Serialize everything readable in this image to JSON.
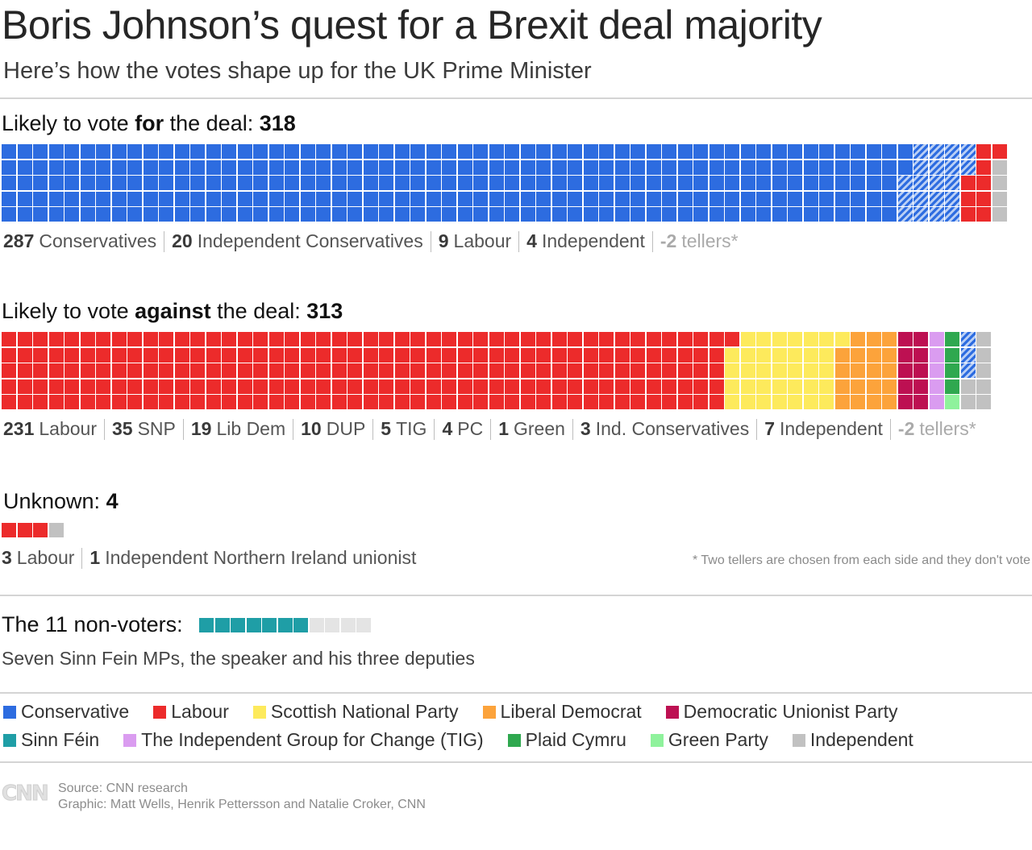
{
  "title": "Boris Johnson’s quest for a Brexit deal majority",
  "subtitle": "Here’s how the votes shape up for the UK Prime Minister",
  "colors": {
    "conservative": "#2d6ce0",
    "labour": "#ec2b2b",
    "snp": "#fdea5c",
    "libdem": "#fca33b",
    "dup": "#bd1052",
    "sinn_fein": "#1f9ea6",
    "tig": "#da9cf0",
    "plaid": "#2fa84f",
    "green": "#8ff29c",
    "independent": "#c1c1c1",
    "independent_conservative_hatch": "#2d6ce0",
    "empty": "#e4e4e4"
  },
  "chart_data": [
    {
      "type": "waffle",
      "heading_prefix": "Likely to vote",
      "heading_bold": "for",
      "heading_suffix": "the deal:",
      "total": "318",
      "rows": 5,
      "segments": [
        {
          "party": "Conservatives",
          "count": 287,
          "color_key": "conservative",
          "hatch": false
        },
        {
          "party": "Independent Conservatives",
          "count": 20,
          "color_key": "conservative",
          "hatch": true
        },
        {
          "party": "Labour",
          "count": 9,
          "color_key": "labour",
          "hatch": false
        },
        {
          "party": "Independent",
          "count": 4,
          "color_key": "independent",
          "hatch": false
        }
      ],
      "breakdown": [
        {
          "num": "287",
          "label": "Conservatives",
          "muted": false
        },
        {
          "num": "20",
          "label": "Independent Conservatives",
          "muted": false
        },
        {
          "num": "9",
          "label": "Labour",
          "muted": false
        },
        {
          "num": "4",
          "label": "Independent",
          "muted": false
        },
        {
          "num": "-2",
          "label": "tellers*",
          "muted": true
        }
      ]
    },
    {
      "type": "waffle",
      "heading_prefix": "Likely to vote",
      "heading_bold": "against",
      "heading_suffix": "the deal:",
      "total": "313",
      "rows": 5,
      "segments": [
        {
          "party": "Labour",
          "count": 231,
          "color_key": "labour",
          "hatch": false
        },
        {
          "party": "SNP",
          "count": 35,
          "color_key": "snp",
          "hatch": false
        },
        {
          "party": "Lib Dem",
          "count": 19,
          "color_key": "libdem",
          "hatch": false
        },
        {
          "party": "DUP",
          "count": 10,
          "color_key": "dup",
          "hatch": false
        },
        {
          "party": "TIG",
          "count": 5,
          "color_key": "tig",
          "hatch": false
        },
        {
          "party": "PC",
          "count": 4,
          "color_key": "plaid",
          "hatch": false
        },
        {
          "party": "Green",
          "count": 1,
          "color_key": "green",
          "hatch": false
        },
        {
          "party": "Ind. Conservatives",
          "count": 3,
          "color_key": "conservative",
          "hatch": true
        },
        {
          "party": "Independent",
          "count": 7,
          "color_key": "independent",
          "hatch": false
        }
      ],
      "breakdown": [
        {
          "num": "231",
          "label": "Labour",
          "muted": false
        },
        {
          "num": "35",
          "label": "SNP",
          "muted": false
        },
        {
          "num": "19",
          "label": "Lib Dem",
          "muted": false
        },
        {
          "num": "10",
          "label": "DUP",
          "muted": false
        },
        {
          "num": "5",
          "label": "TIG",
          "muted": false
        },
        {
          "num": "4",
          "label": "PC",
          "muted": false
        },
        {
          "num": "1",
          "label": "Green",
          "muted": false
        },
        {
          "num": "3",
          "label": "Ind. Conservatives",
          "muted": false
        },
        {
          "num": "7",
          "label": "Independent",
          "muted": false
        },
        {
          "num": "-2",
          "label": "tellers*",
          "muted": true
        }
      ]
    },
    {
      "type": "waffle",
      "heading_prefix": "Unknown:",
      "heading_bold": "",
      "heading_suffix": "",
      "total": "4",
      "rows": 1,
      "segments": [
        {
          "party": "Labour",
          "count": 3,
          "color_key": "labour",
          "hatch": false
        },
        {
          "party": "Independent Northern Ireland unionist",
          "count": 1,
          "color_key": "independent",
          "hatch": false
        }
      ],
      "breakdown": [
        {
          "num": "3",
          "label": "Labour",
          "muted": false
        },
        {
          "num": "1",
          "label": "Independent Northern Ireland unionist",
          "muted": false
        }
      ]
    },
    {
      "type": "waffle",
      "heading_prefix": "The 11 non-voters:",
      "rows": 1,
      "segments": [
        {
          "party": "Sinn Féin",
          "count": 7,
          "color_key": "sinn_fein",
          "hatch": false
        },
        {
          "party": "Speaker and deputies",
          "count": 4,
          "color_key": "empty",
          "hatch": false
        }
      ],
      "description": "Seven Sinn Fein MPs, the speaker and his three deputies"
    }
  ],
  "tellers_note": "* Two tellers are chosen from each side and they don't vote",
  "legend": [
    {
      "label": "Conservative",
      "color_key": "conservative"
    },
    {
      "label": "Labour",
      "color_key": "labour"
    },
    {
      "label": "Scottish National Party",
      "color_key": "snp"
    },
    {
      "label": "Liberal Democrat",
      "color_key": "libdem"
    },
    {
      "label": "Democratic Unionist Party",
      "color_key": "dup"
    },
    {
      "label": "Sinn Féin",
      "color_key": "sinn_fein"
    },
    {
      "label": "The Independent Group for Change (TIG)",
      "color_key": "tig"
    },
    {
      "label": "Plaid Cymru",
      "color_key": "plaid"
    },
    {
      "label": "Green Party",
      "color_key": "green"
    },
    {
      "label": "Independent",
      "color_key": "independent"
    }
  ],
  "source": "Source: CNN research",
  "credit": "Graphic: Matt Wells, Henrik Pettersson and Natalie Croker, CNN",
  "logo_text": "CNN"
}
